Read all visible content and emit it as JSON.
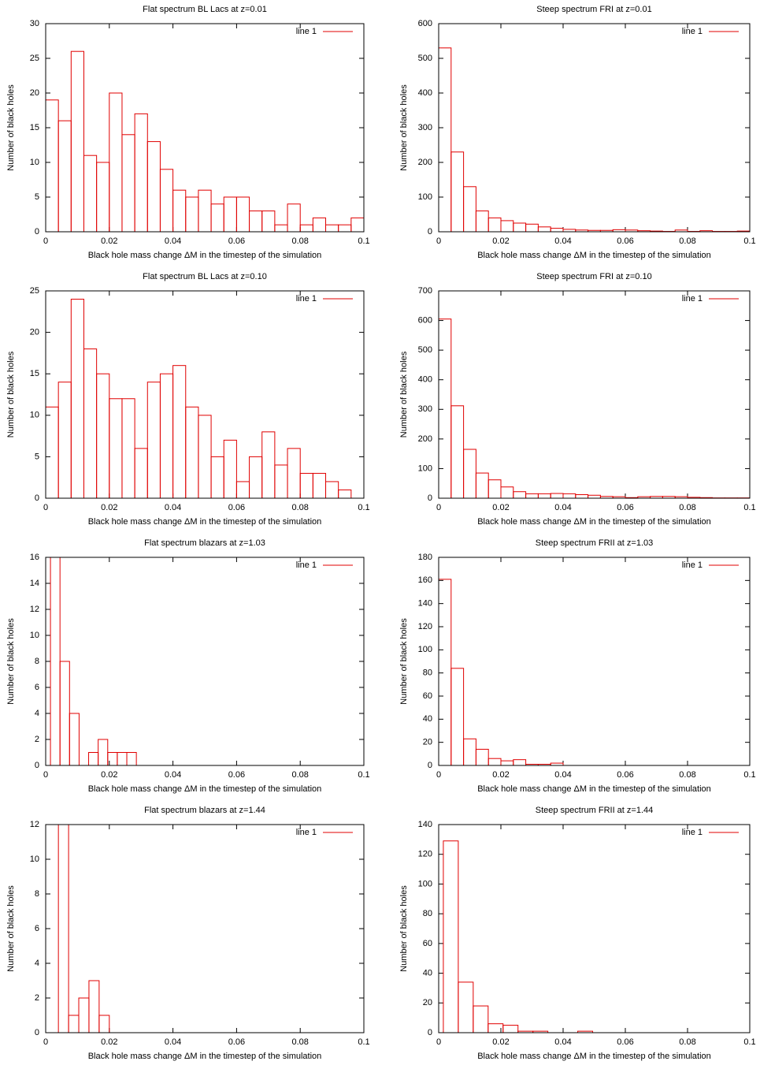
{
  "chart_data": [
    {
      "type": "histogram",
      "title": "Flat spectrum BL Lacs at z=0.01",
      "x_label": "Black hole mass change ΔM in the timestep of the simulation",
      "y_label": "Number of black holes",
      "bins": [
        0,
        0.004,
        0.008,
        0.012,
        0.016,
        0.02,
        0.024,
        0.028,
        0.032,
        0.036,
        0.04,
        0.044,
        0.048,
        0.052,
        0.056,
        0.06,
        0.064,
        0.068,
        0.072,
        0.076,
        0.08,
        0.084,
        0.088,
        0.092,
        0.096,
        0.1
      ],
      "series": [
        {
          "name": "line 1",
          "color": "#e00000",
          "values": [
            19,
            16,
            26,
            11,
            10,
            20,
            14,
            17,
            13,
            9,
            6,
            5,
            6,
            4,
            5,
            5,
            3,
            3,
            1,
            4,
            1,
            2,
            1,
            1,
            2
          ]
        }
      ],
      "xlim": [
        0,
        0.1
      ],
      "xticks": [
        0,
        0.02,
        0.04,
        0.06,
        0.08,
        0.1
      ],
      "ylim": [
        0,
        30
      ],
      "yticks": [
        0,
        5,
        10,
        15,
        20,
        25,
        30
      ],
      "legend": "upper right"
    },
    {
      "type": "histogram",
      "title": "Steep spectrum FRI at z=0.01",
      "x_label": "Black hole mass change ΔM in the timestep of the simulation",
      "y_label": "Number of black holes",
      "bins": [
        0,
        0.004,
        0.008,
        0.012,
        0.016,
        0.02,
        0.024,
        0.028,
        0.032,
        0.036,
        0.04,
        0.044,
        0.048,
        0.052,
        0.056,
        0.06,
        0.064,
        0.068,
        0.072,
        0.076,
        0.08,
        0.084,
        0.088,
        0.092,
        0.096,
        0.1
      ],
      "series": [
        {
          "name": "line 1",
          "color": "#e00000",
          "values": [
            530,
            230,
            130,
            60,
            40,
            32,
            25,
            22,
            14,
            10,
            7,
            5,
            4,
            4,
            6,
            5,
            3,
            2,
            1,
            5,
            1,
            3,
            1,
            1,
            2
          ]
        }
      ],
      "xlim": [
        0,
        0.1
      ],
      "xticks": [
        0,
        0.02,
        0.04,
        0.06,
        0.08,
        0.1
      ],
      "ylim": [
        0,
        600
      ],
      "yticks": [
        0,
        100,
        200,
        300,
        400,
        500,
        600
      ],
      "legend": "upper right"
    },
    {
      "type": "histogram",
      "title": "Flat spectrum BL Lacs at z=0.10",
      "x_label": "Black hole mass change ΔM in the timestep of the simulation",
      "y_label": "Number of black holes",
      "bins": [
        0,
        0.004,
        0.008,
        0.012,
        0.016,
        0.02,
        0.024,
        0.028,
        0.032,
        0.036,
        0.04,
        0.044,
        0.048,
        0.052,
        0.056,
        0.06,
        0.064,
        0.068,
        0.072,
        0.076,
        0.08,
        0.084,
        0.088,
        0.092,
        0.096
      ],
      "series": [
        {
          "name": "line 1",
          "color": "#e00000",
          "values": [
            11,
            14,
            24,
            18,
            15,
            12,
            12,
            6,
            14,
            15,
            16,
            11,
            10,
            5,
            7,
            2,
            5,
            8,
            4,
            6,
            3,
            3,
            2,
            1
          ]
        }
      ],
      "xlim": [
        0,
        0.1
      ],
      "xticks": [
        0,
        0.02,
        0.04,
        0.06,
        0.08,
        0.1
      ],
      "ylim": [
        0,
        25
      ],
      "yticks": [
        0,
        5,
        10,
        15,
        20,
        25
      ],
      "legend": "upper right"
    },
    {
      "type": "histogram",
      "title": "Steep spectrum FRI at z=0.10",
      "x_label": "Black hole mass change ΔM in the timestep of the simulation",
      "y_label": "Number of black holes",
      "bins": [
        0,
        0.004,
        0.008,
        0.012,
        0.016,
        0.02,
        0.024,
        0.028,
        0.032,
        0.036,
        0.04,
        0.044,
        0.048,
        0.052,
        0.056,
        0.06,
        0.064,
        0.068,
        0.072,
        0.076,
        0.08,
        0.084,
        0.088,
        0.092,
        0.096,
        0.1
      ],
      "series": [
        {
          "name": "line 1",
          "color": "#e00000",
          "values": [
            605,
            312,
            165,
            85,
            62,
            38,
            22,
            15,
            15,
            16,
            15,
            12,
            10,
            6,
            5,
            2,
            5,
            6,
            6,
            5,
            3,
            2,
            1,
            1,
            1
          ]
        }
      ],
      "xlim": [
        0,
        0.1
      ],
      "xticks": [
        0,
        0.02,
        0.04,
        0.06,
        0.08,
        0.1
      ],
      "ylim": [
        0,
        700
      ],
      "yticks": [
        0,
        100,
        200,
        300,
        400,
        500,
        600,
        700
      ],
      "legend": "upper right"
    },
    {
      "type": "histogram",
      "title": "Flat spectrum blazars at z=1.03",
      "x_label": "Black hole mass change ΔM in the timestep of the simulation",
      "y_label": "Number of black holes",
      "bins": [
        0.0015,
        0.0045,
        0.0075,
        0.0105,
        0.0135,
        0.0165,
        0.0195,
        0.0225,
        0.0255,
        0.0285
      ],
      "series": [
        {
          "name": "line 1",
          "color": "#e00000",
          "values": [
            16,
            8,
            4,
            0,
            1,
            2,
            1,
            1,
            1
          ]
        }
      ],
      "xlim": [
        0,
        0.1
      ],
      "xticks": [
        0,
        0.02,
        0.04,
        0.06,
        0.08,
        0.1
      ],
      "ylim": [
        0,
        16
      ],
      "yticks": [
        0,
        2,
        4,
        6,
        8,
        10,
        12,
        14,
        16
      ],
      "legend": "upper right"
    },
    {
      "type": "histogram",
      "title": "Steep spectrum FRII at z=1.03",
      "x_label": "Black hole mass change ΔM in the timestep of the simulation",
      "y_label": "Number of black holes",
      "bins": [
        0,
        0.004,
        0.008,
        0.012,
        0.016,
        0.02,
        0.024,
        0.028,
        0.032,
        0.036,
        0.04
      ],
      "series": [
        {
          "name": "line 1",
          "color": "#e00000",
          "values": [
            161,
            84,
            23,
            14,
            6,
            4,
            5,
            1,
            1,
            2
          ]
        }
      ],
      "xlim": [
        0,
        0.1
      ],
      "xticks": [
        0,
        0.02,
        0.04,
        0.06,
        0.08,
        0.1
      ],
      "ylim": [
        0,
        180
      ],
      "yticks": [
        0,
        20,
        40,
        60,
        80,
        100,
        120,
        140,
        160,
        180
      ],
      "legend": "upper right"
    },
    {
      "type": "histogram",
      "title": "Flat spectrum blazars at z=1.44",
      "x_label": "Black hole mass change ΔM in the timestep of the simulation",
      "y_label": "Number of black holes",
      "bins": [
        0.004,
        0.0072,
        0.0104,
        0.0136,
        0.0168,
        0.02
      ],
      "series": [
        {
          "name": "line 1",
          "color": "#e00000",
          "values": [
            12,
            1,
            2,
            3,
            1
          ]
        }
      ],
      "xlim": [
        0,
        0.1
      ],
      "xticks": [
        0,
        0.02,
        0.04,
        0.06,
        0.08,
        0.1
      ],
      "ylim": [
        0,
        12
      ],
      "yticks": [
        0,
        2,
        4,
        6,
        8,
        10,
        12
      ],
      "legend": "upper right"
    },
    {
      "type": "histogram",
      "title": "Steep spectrum FRII at z=1.44",
      "x_label": "Black hole mass change ΔM in the timestep of the simulation",
      "y_label": "Number of black holes",
      "bins": [
        0.0015,
        0.0063,
        0.0111,
        0.0159,
        0.0207,
        0.0255,
        0.0303,
        0.0351,
        0.0399,
        0.0447,
        0.0495
      ],
      "series": [
        {
          "name": "line 1",
          "color": "#e00000",
          "values": [
            129,
            34,
            18,
            6,
            5,
            1,
            1,
            0,
            0,
            1
          ]
        }
      ],
      "xlim": [
        0,
        0.1
      ],
      "xticks": [
        0,
        0.02,
        0.04,
        0.06,
        0.08,
        0.1
      ],
      "ylim": [
        0,
        140
      ],
      "yticks": [
        0,
        20,
        40,
        60,
        80,
        100,
        120,
        140
      ],
      "legend": "upper right"
    }
  ]
}
